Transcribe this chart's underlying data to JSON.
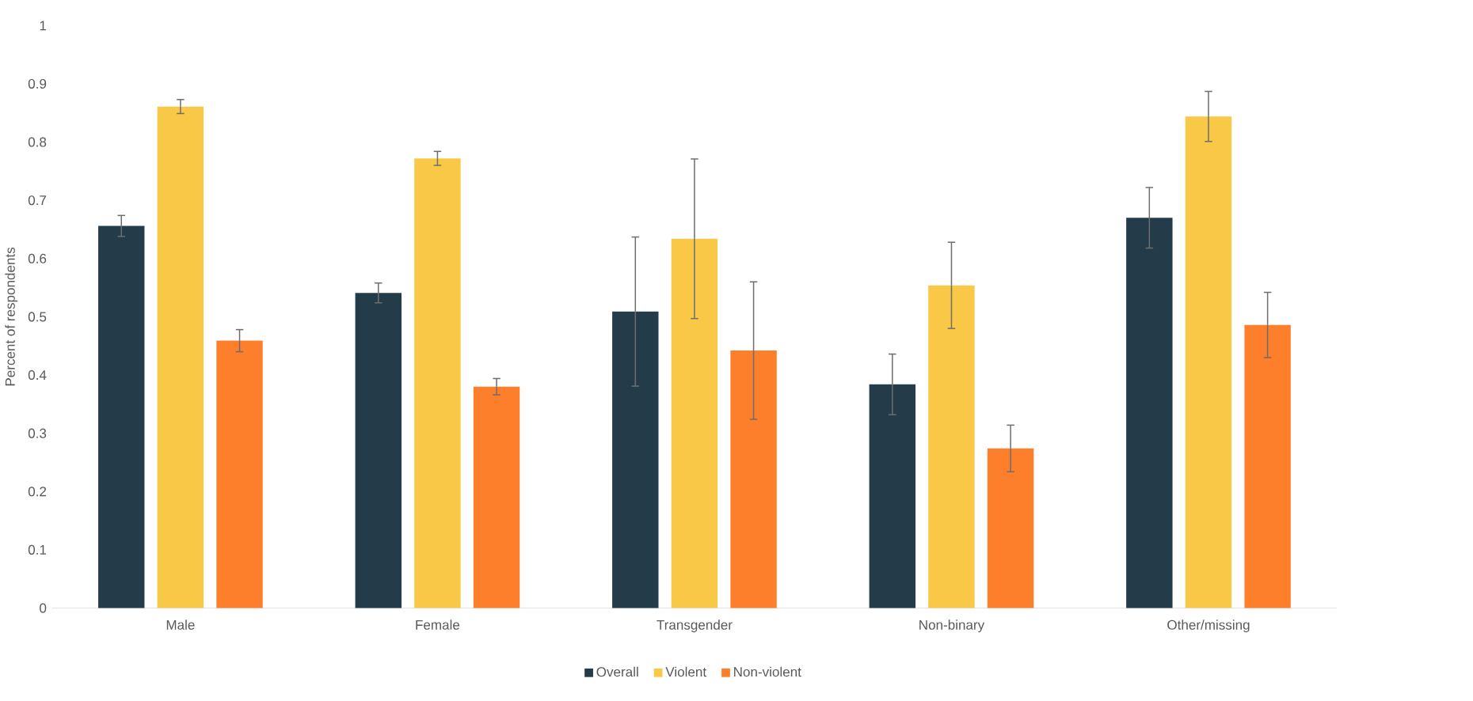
{
  "chart_data": {
    "type": "bar",
    "ylabel": "Percent of respondents",
    "categories": [
      "Male",
      "Female",
      "Transgender",
      "Non-binary",
      "Other/missing"
    ],
    "series": [
      {
        "name": "Overall",
        "color": "#243b4a",
        "values": [
          0.656,
          0.541,
          0.509,
          0.384,
          0.67
        ],
        "errors": [
          0.018,
          0.017,
          0.128,
          0.052,
          0.052
        ]
      },
      {
        "name": "Violent",
        "color": "#f9c846",
        "values": [
          0.861,
          0.772,
          0.634,
          0.554,
          0.844
        ],
        "errors": [
          0.012,
          0.012,
          0.137,
          0.074,
          0.043
        ]
      },
      {
        "name": "Non-violent",
        "color": "#fd7f2c",
        "values": [
          0.459,
          0.38,
          0.442,
          0.274,
          0.486
        ],
        "errors": [
          0.019,
          0.014,
          0.118,
          0.04,
          0.056
        ]
      }
    ],
    "ylim": [
      0,
      1
    ],
    "yticks": [
      0,
      0.1,
      0.2,
      0.3,
      0.4,
      0.5,
      0.6,
      0.7,
      0.8,
      0.9,
      1
    ],
    "grid": false,
    "legend": "bottom"
  }
}
